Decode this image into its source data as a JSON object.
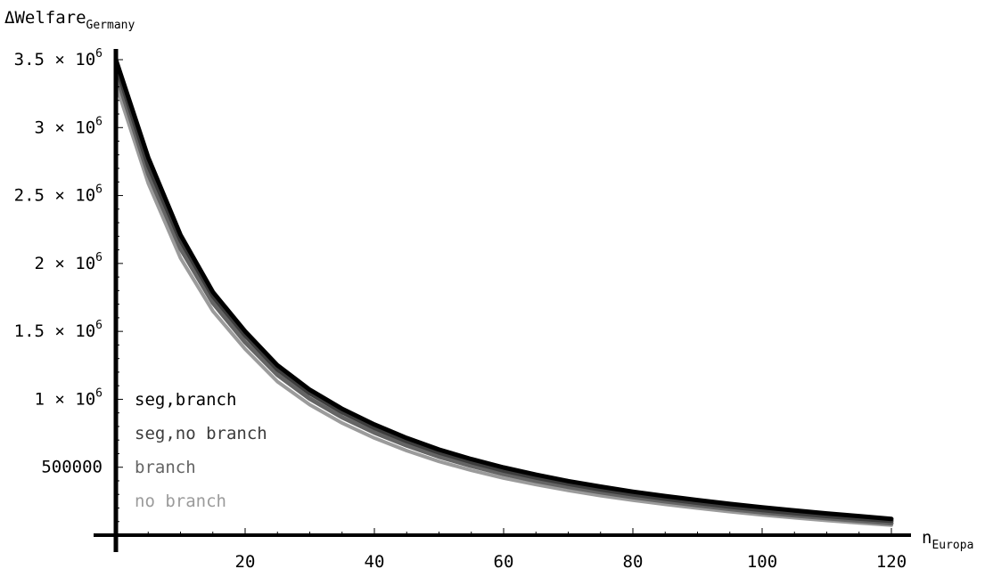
{
  "chart_data": {
    "type": "line",
    "ylabel": {
      "main": "ΔWelfare",
      "sub": "Germany"
    },
    "xlabel": {
      "main": "n",
      "sub": "Europa"
    },
    "xlim": [
      0,
      122
    ],
    "ylim": [
      0,
      3500000
    ],
    "x_ticks": [
      {
        "value": 20,
        "label": "20"
      },
      {
        "value": 40,
        "label": "40"
      },
      {
        "value": 60,
        "label": "60"
      },
      {
        "value": 80,
        "label": "80"
      },
      {
        "value": 100,
        "label": "100"
      },
      {
        "value": 120,
        "label": "120"
      }
    ],
    "y_ticks": [
      {
        "value": 500000,
        "label": "500000"
      },
      {
        "value": 1000000,
        "mantissa": "1",
        "exp": "6"
      },
      {
        "value": 1500000,
        "mantissa": "1.5",
        "exp": "6"
      },
      {
        "value": 2000000,
        "mantissa": "2",
        "exp": "6"
      },
      {
        "value": 2500000,
        "mantissa": "2.5",
        "exp": "6"
      },
      {
        "value": 3000000,
        "mantissa": "3",
        "exp": "6"
      },
      {
        "value": 3500000,
        "mantissa": "3.5",
        "exp": "6"
      }
    ],
    "x": [
      0,
      5,
      10,
      15,
      20,
      25,
      30,
      35,
      40,
      45,
      50,
      55,
      60,
      65,
      70,
      75,
      80,
      85,
      90,
      95,
      100,
      105,
      110,
      115,
      120
    ],
    "series": [
      {
        "name": "seg,branch",
        "color": "#000000",
        "values": [
          3500000,
          2780000,
          2210000,
          1790000,
          1500000,
          1250000,
          1070000,
          930000,
          815000,
          715000,
          630000,
          560000,
          498000,
          445000,
          398000,
          357000,
          320000,
          288000,
          258000,
          230000,
          205000,
          182000,
          160000,
          140000,
          120000
        ]
      },
      {
        "name": "seg,no branch",
        "color": "#3c3c3c",
        "values": [
          3460000,
          2720000,
          2170000,
          1760000,
          1470000,
          1220000,
          1045000,
          905000,
          790000,
          692000,
          608000,
          538000,
          476000,
          424000,
          378000,
          337000,
          300000,
          268000,
          238000,
          210000,
          185000,
          162000,
          141000,
          122000,
          105000
        ]
      },
      {
        "name": "branch",
        "color": "#646464",
        "values": [
          3400000,
          2660000,
          2110000,
          1710000,
          1420000,
          1180000,
          1005000,
          868000,
          755000,
          660000,
          578000,
          510000,
          450000,
          400000,
          355000,
          316000,
          280000,
          249000,
          220000,
          193000,
          168000,
          146000,
          125000,
          106000,
          88000
        ]
      },
      {
        "name": "no branch",
        "color": "#9b9b9b",
        "values": [
          3320000,
          2590000,
          2040000,
          1650000,
          1370000,
          1130000,
          960000,
          825000,
          715000,
          622000,
          543000,
          477000,
          420000,
          372000,
          329000,
          291000,
          257000,
          227000,
          199000,
          173000,
          149000,
          128000,
          108000,
          90000,
          74000
        ]
      }
    ],
    "legend": {
      "position": "bottom-left",
      "order": [
        "seg,branch",
        "seg,no branch",
        "branch",
        "no branch"
      ]
    },
    "grid": false
  }
}
